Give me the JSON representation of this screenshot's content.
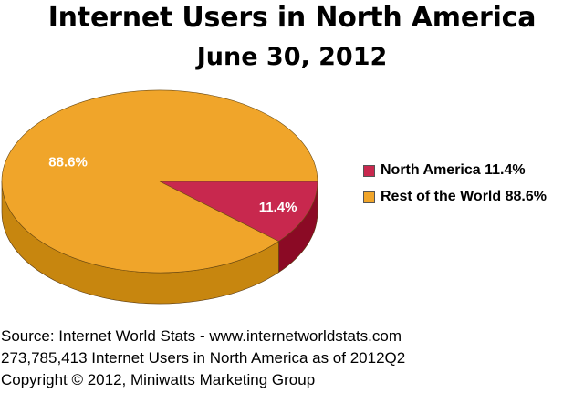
{
  "chart_data": {
    "type": "pie",
    "title": "Internet Users in North America",
    "subtitle": "June 30, 2012",
    "slices": [
      {
        "label": "North America",
        "value": 11.4,
        "display": "11.4%",
        "legend": "North America 11.4%",
        "color": "#c8284e",
        "side_color": "#8b0a25"
      },
      {
        "label": "Rest of the World",
        "value": 88.6,
        "display": "88.6%",
        "legend": "Rest of the World 88.6%",
        "color": "#f0a52a",
        "side_color": "#c7860f"
      }
    ],
    "legend_position": "right",
    "three_d": true
  },
  "footer": {
    "source": "Source: Internet World Stats  -  www.internetworldstats.com",
    "users": "273,785,413 Internet Users in North America as of 2012Q2",
    "copyright": "Copyright © 2012, Miniwatts Marketing Group"
  }
}
